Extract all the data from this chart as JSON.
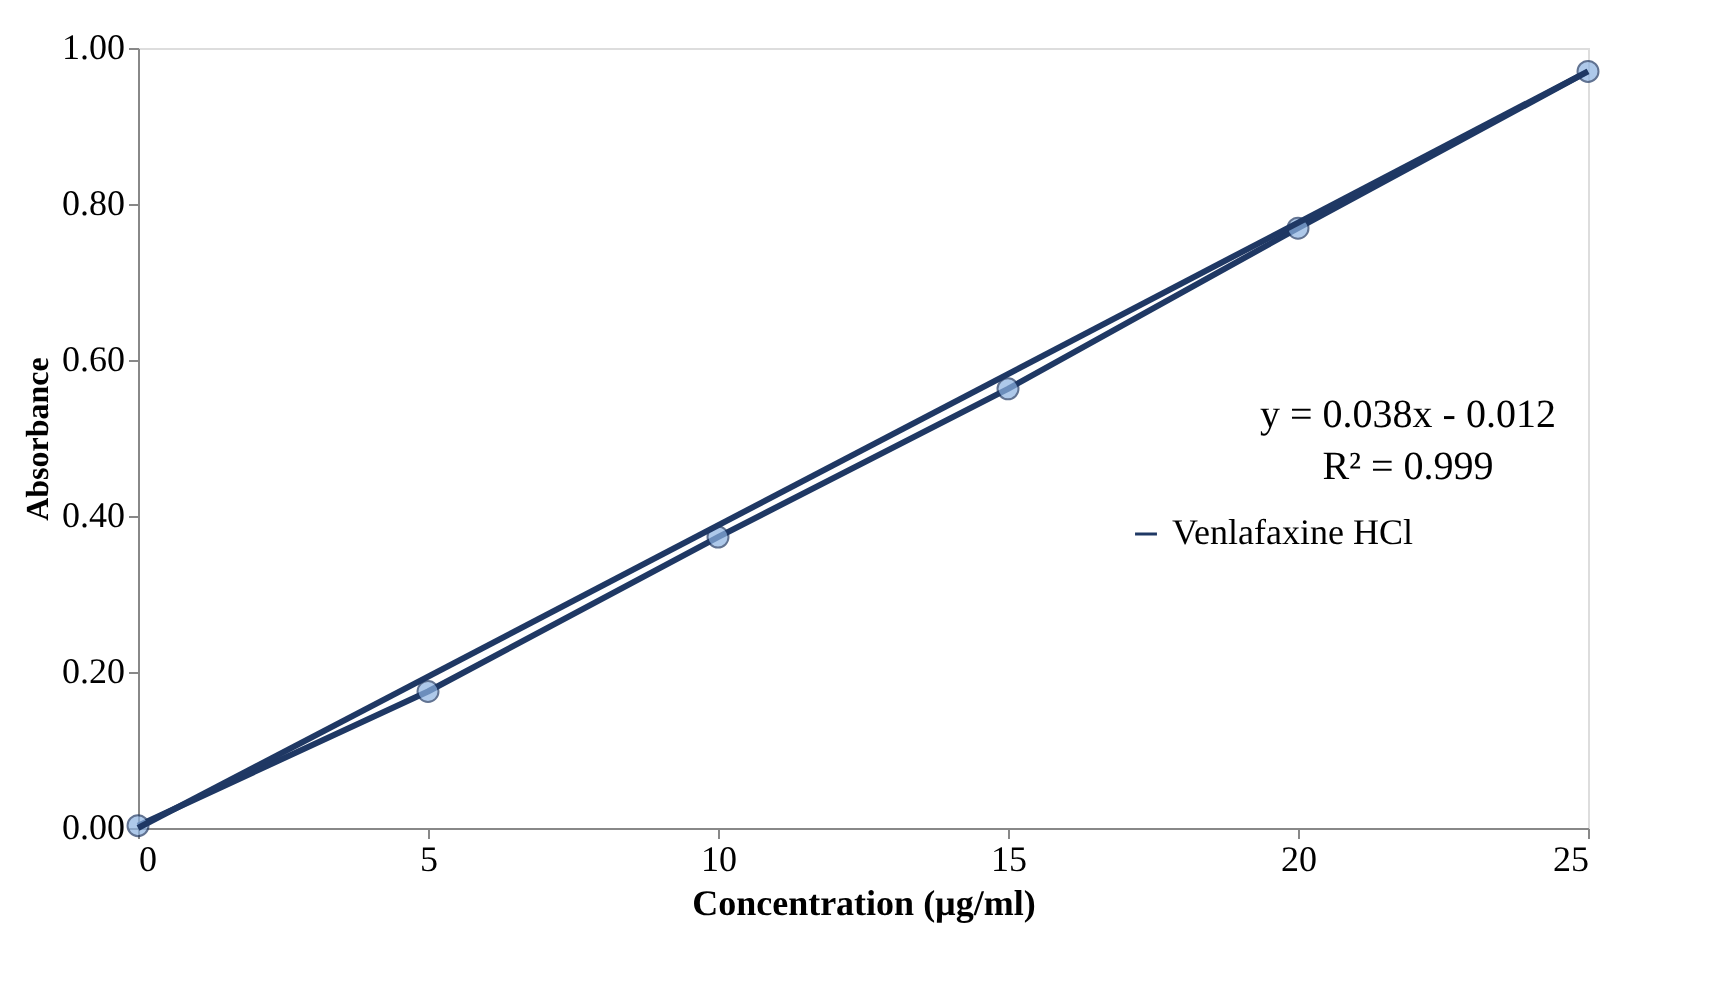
{
  "chart_data": {
    "type": "line",
    "xlabel": "Concentration (µg/ml)",
    "ylabel": "Absorbance",
    "x": [
      0,
      5,
      10,
      15,
      20,
      25
    ],
    "series": [
      {
        "name": "Venlafaxine HCl",
        "color": "#1f3864",
        "values": [
          0.003,
          0.175,
          0.373,
          0.563,
          0.769,
          0.97
        ],
        "marker": "circle"
      },
      {
        "type": "line",
        "color": "#1f3864",
        "x": [
          0,
          25
        ],
        "values": [
          0.0,
          0.97
        ],
        "marker": "none"
      }
    ],
    "xlim": [
      0,
      25
    ],
    "xticks": [
      0,
      5,
      10,
      15,
      20,
      25
    ],
    "ylim": [
      0,
      1
    ],
    "yticks": [
      {
        "value": 0,
        "label": "0.00"
      },
      {
        "value": 0.2,
        "label": "0.20"
      },
      {
        "value": 0.4,
        "label": "0.40"
      },
      {
        "value": 0.6,
        "label": "0.60"
      },
      {
        "value": 0.8,
        "label": "0.80"
      },
      {
        "value": 1,
        "label": "1.00"
      }
    ],
    "annotations": [
      "y = 0.038x - 0.012",
      "R² = 0.999"
    ],
    "legend": "right",
    "grid": false
  }
}
